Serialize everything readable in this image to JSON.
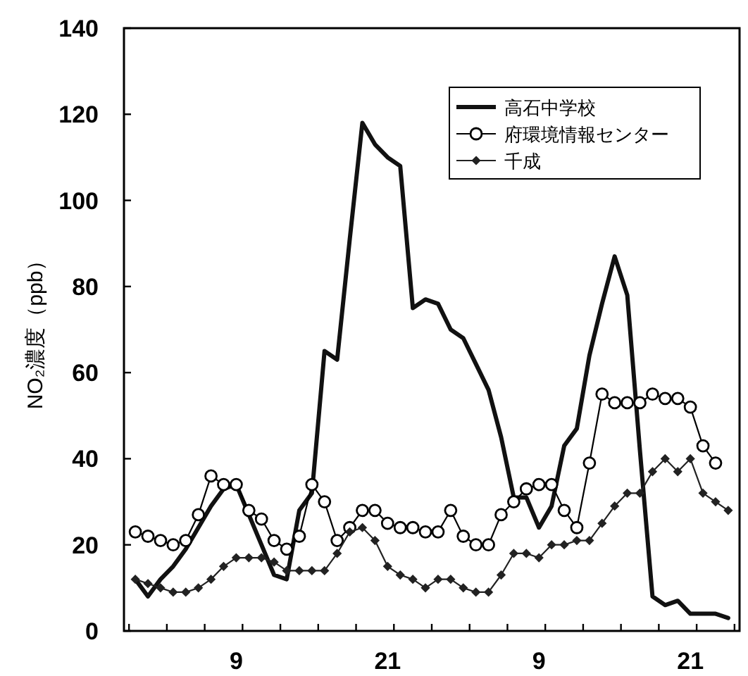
{
  "chart_data": {
    "type": "line",
    "ylabel": "NO₂濃度（ppb）",
    "categories": [
      null,
      null,
      null,
      null,
      null,
      null,
      null,
      null,
      "9",
      null,
      null,
      null,
      null,
      null,
      null,
      null,
      null,
      null,
      null,
      null,
      "21",
      null,
      null,
      null,
      null,
      null,
      null,
      null,
      null,
      null,
      null,
      null,
      "9",
      null,
      null,
      null,
      null,
      null,
      null,
      null,
      null,
      null,
      null,
      null,
      "21",
      null,
      null,
      null
    ],
    "ylim": [
      0,
      140
    ],
    "yticks": [
      0,
      20,
      40,
      60,
      80,
      100,
      120,
      140
    ],
    "grid": false,
    "legend": "top right",
    "series": [
      {
        "name": "高石中学校",
        "color": "#111111",
        "marker": "none",
        "values": [
          12,
          8,
          12,
          15,
          19,
          24,
          29,
          33,
          34,
          27,
          20,
          13,
          12,
          28,
          32,
          65,
          63,
          91,
          118,
          113,
          110,
          108,
          75,
          77,
          76,
          70,
          68,
          62,
          56,
          45,
          31,
          31,
          24,
          29,
          43,
          47,
          64,
          76,
          87,
          78,
          42,
          8,
          6,
          7,
          4,
          4,
          4,
          3
        ]
      },
      {
        "name": "府環境情報センター",
        "color": "#000000",
        "marker": "circle",
        "values": [
          23,
          22,
          21,
          20,
          21,
          27,
          36,
          34,
          34,
          28,
          26,
          21,
          19,
          22,
          34,
          30,
          21,
          24,
          28,
          28,
          25,
          24,
          24,
          23,
          23,
          28,
          22,
          20,
          20,
          27,
          30,
          33,
          34,
          34,
          28,
          24,
          39,
          55,
          53,
          53,
          53,
          55,
          54,
          54,
          52,
          43,
          39,
          null
        ]
      },
      {
        "name": "千成",
        "color": "#222222",
        "marker": "diamond",
        "values": [
          12,
          11,
          10,
          9,
          9,
          10,
          12,
          15,
          17,
          17,
          17,
          16,
          14,
          14,
          14,
          14,
          18,
          23,
          24,
          21,
          15,
          13,
          12,
          10,
          12,
          12,
          10,
          9,
          9,
          13,
          18,
          18,
          17,
          20,
          20,
          21,
          21,
          25,
          29,
          32,
          32,
          37,
          40,
          37,
          40,
          32,
          30,
          28
        ]
      }
    ]
  }
}
